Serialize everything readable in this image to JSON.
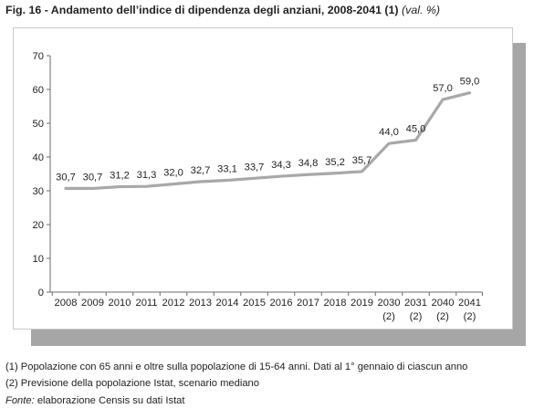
{
  "figure": {
    "title": "Fig. 16 - Andamento dell’indice di dipendenza degli anziani, 2008-2041 (1)",
    "unit": "(val. %)"
  },
  "chart_data": {
    "type": "line",
    "categories": [
      "2008",
      "2009",
      "2010",
      "2011",
      "2012",
      "2013",
      "2014",
      "2015",
      "2016",
      "2017",
      "2018",
      "2019",
      "2030",
      "2031",
      "2040",
      "2041"
    ],
    "category_sublabels": [
      "",
      "",
      "",
      "",
      "",
      "",
      "",
      "",
      "",
      "",
      "",
      "",
      "(2)",
      "(2)",
      "(2)",
      "(2)"
    ],
    "series": [
      {
        "values": [
          30.7,
          30.7,
          31.2,
          31.3,
          32.0,
          32.7,
          33.1,
          33.7,
          34.3,
          34.8,
          35.2,
          35.7,
          44.0,
          45.0,
          57.0,
          59.0
        ],
        "labels": [
          "30,7",
          "30,7",
          "31,2",
          "31,3",
          "32,0",
          "32,7",
          "33,1",
          "33,7",
          "34,3",
          "34,8",
          "35,2",
          "35,7",
          "44,0",
          "45,0",
          "57,0",
          "59,0"
        ],
        "color": "#a8a8a8"
      }
    ],
    "y_ticks": [
      0,
      10,
      20,
      30,
      40,
      50,
      60,
      70
    ],
    "ylim": [
      0,
      70
    ],
    "grid": false,
    "legend": "none",
    "colors": {
      "line": "#a8a8a8",
      "axis": "#6b6b6b",
      "text": "#222222",
      "shadow": "#a6a6a6"
    }
  },
  "notes": {
    "note1": "(1) Popolazione con 65 anni e oltre sulla popolazione di 15-64 anni. Dati al 1° gennaio di ciascun anno",
    "note2": "(2) Previsione della popolazione Istat, scenario mediano",
    "source_label": "Fonte:",
    "source_text": " elaborazione Censis su dati Istat"
  }
}
